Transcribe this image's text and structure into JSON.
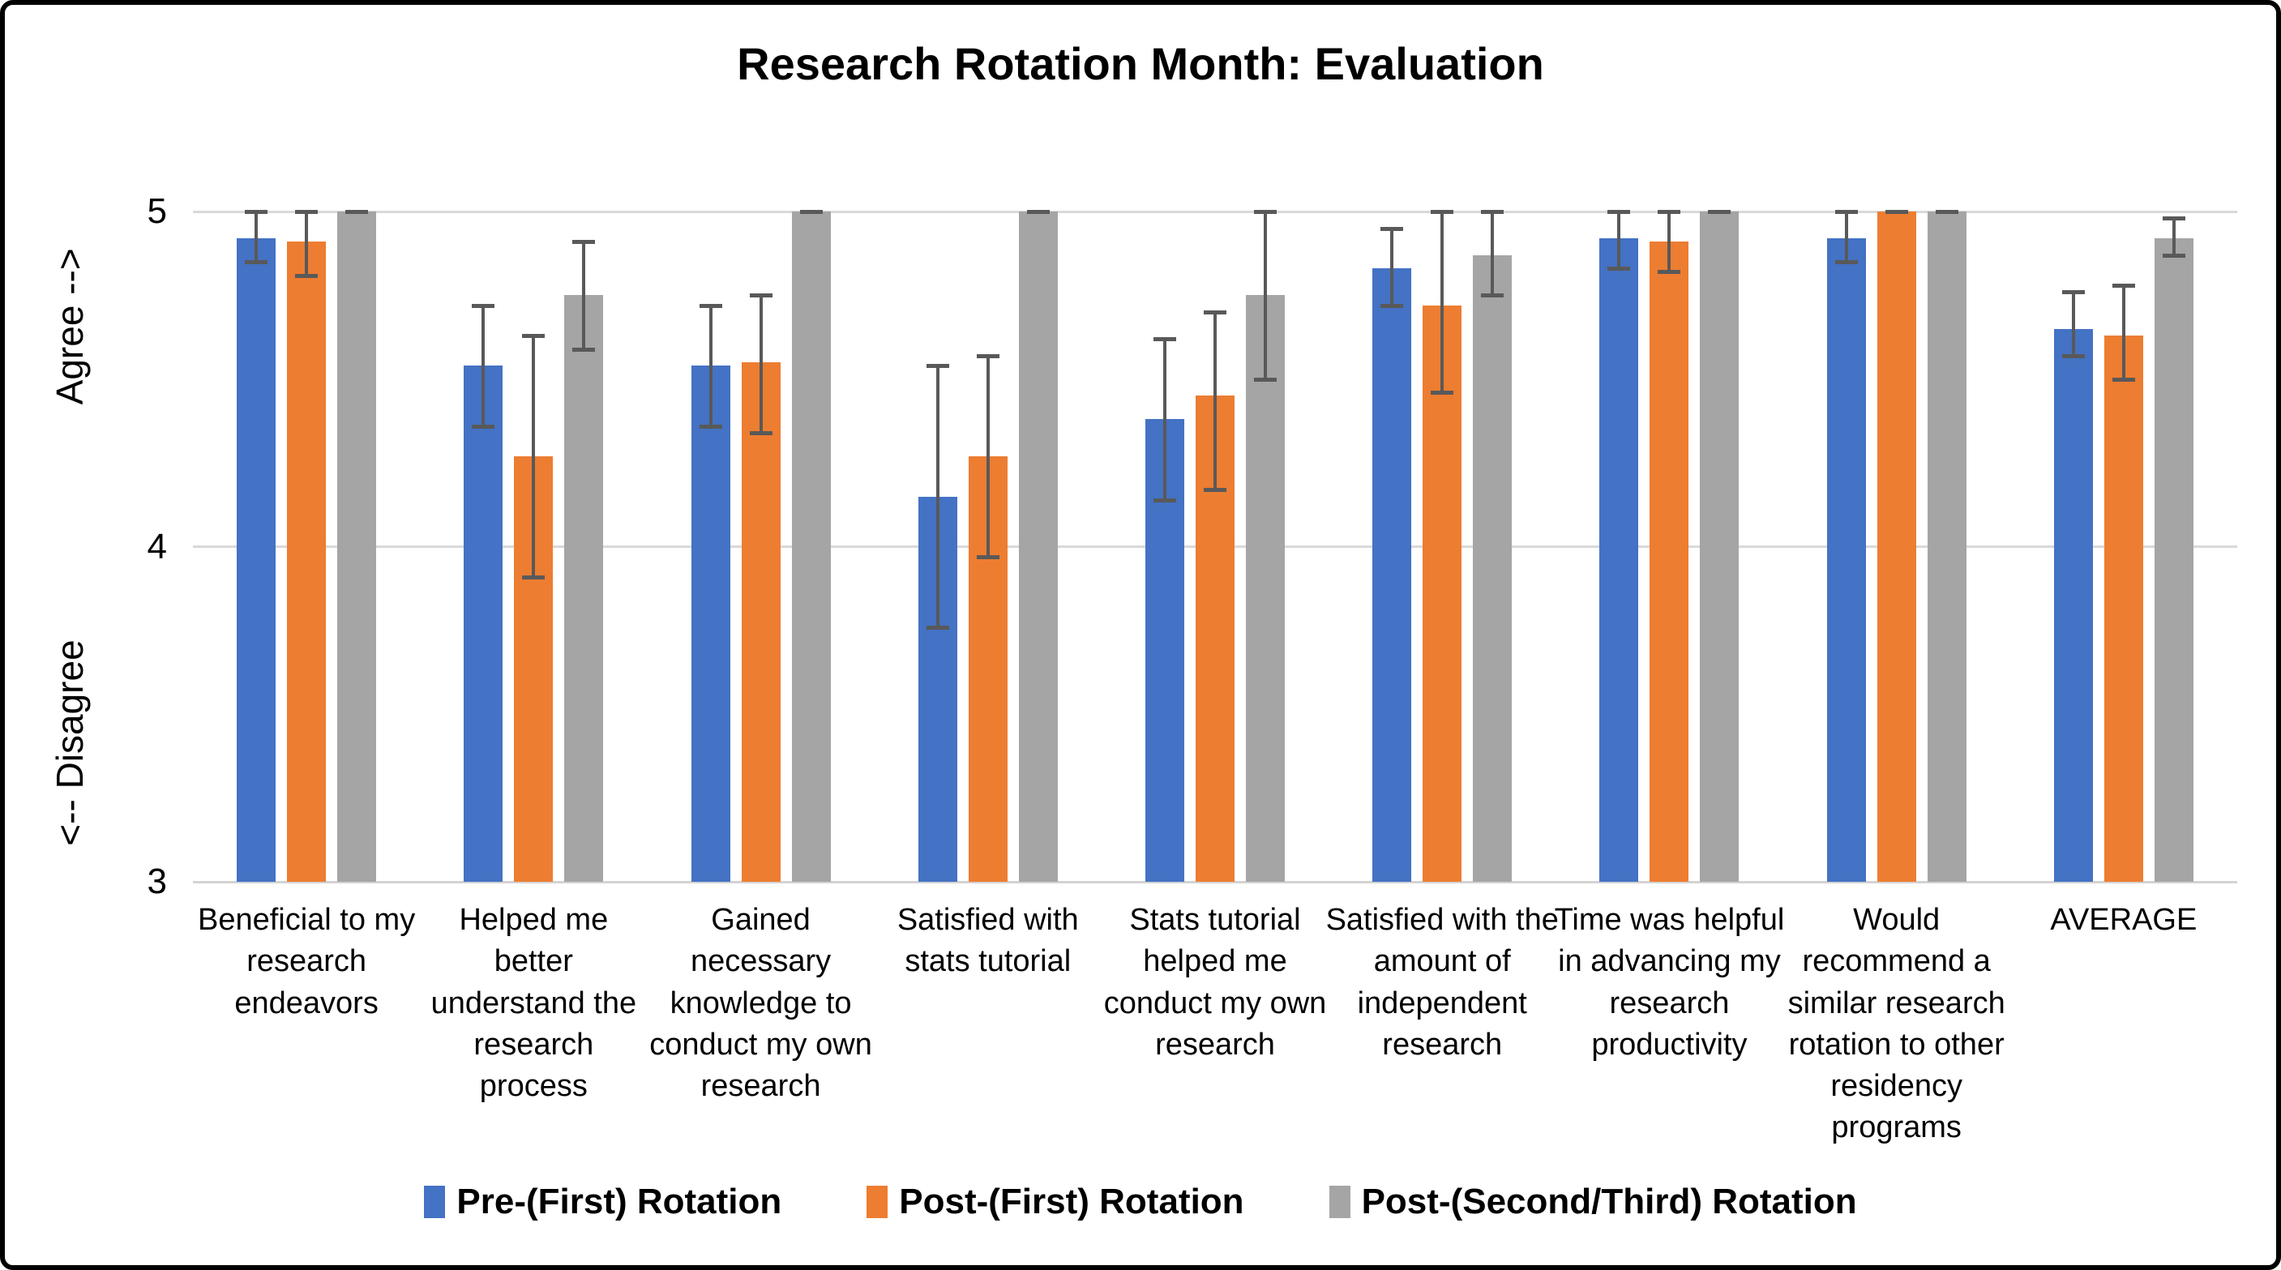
{
  "title": "Research Rotation Month: Evaluation",
  "y_axis": {
    "title_lower": "<-- Disagree",
    "title_upper": "Agree -->",
    "ticks": [
      5,
      4,
      3
    ],
    "min": 3,
    "max": 5
  },
  "colors": {
    "series_blue": "#4472C4",
    "series_orange": "#ED7D31",
    "series_gray": "#A5A5A5",
    "error_bar": "#595959",
    "gridline": "#D9D9D9"
  },
  "chart_data": {
    "type": "bar",
    "title": "Research Rotation Month: Evaluation",
    "y_axis_label": "<-- Disagree      Agree -->",
    "ylim": [
      3,
      5
    ],
    "yticks": [
      3,
      4,
      5
    ],
    "grid": "horizontal",
    "legend_position": "bottom",
    "error_bars": true,
    "categories": [
      "Beneficial to my research endeavors",
      "Helped me better understand the research process",
      "Gained necessary knowledge to conduct my own research",
      "Satisfied with stats tutorial",
      "Stats tutorial helped me conduct my own research",
      "Satisfied with the amount of independent research",
      "Time was helpful in advancing my research productivity",
      "Would recommend a similar research rotation to other residency programs",
      "AVERAGE"
    ],
    "series": [
      {
        "name": "Pre-(First) Rotation",
        "color": "#4472C4",
        "values": [
          4.92,
          4.54,
          4.54,
          4.15,
          4.38,
          4.83,
          4.92,
          4.92,
          4.65
        ],
        "error_low": [
          4.85,
          4.36,
          4.36,
          3.76,
          4.14,
          4.72,
          4.83,
          4.85,
          4.57
        ],
        "error_high": [
          5.0,
          4.72,
          4.72,
          4.54,
          4.62,
          4.95,
          5.0,
          5.0,
          4.76
        ]
      },
      {
        "name": "Post-(First) Rotation",
        "color": "#ED7D31",
        "values": [
          4.91,
          4.27,
          4.55,
          4.27,
          4.45,
          4.72,
          4.91,
          5.0,
          4.63
        ],
        "error_low": [
          4.81,
          3.91,
          4.34,
          3.97,
          4.17,
          4.46,
          4.82,
          5.0,
          4.5
        ],
        "error_high": [
          5.0,
          4.63,
          4.75,
          4.57,
          4.7,
          5.0,
          5.0,
          5.0,
          4.78
        ]
      },
      {
        "name": "Post-(Second/Third) Rotation",
        "color": "#A5A5A5",
        "values": [
          5.0,
          4.75,
          5.0,
          5.0,
          4.75,
          4.87,
          5.0,
          5.0,
          4.92
        ],
        "error_low": [
          5.0,
          4.59,
          5.0,
          5.0,
          4.5,
          4.75,
          5.0,
          5.0,
          4.87
        ],
        "error_high": [
          5.0,
          4.91,
          5.0,
          5.0,
          5.0,
          5.0,
          5.0,
          5.0,
          4.98
        ]
      }
    ]
  }
}
